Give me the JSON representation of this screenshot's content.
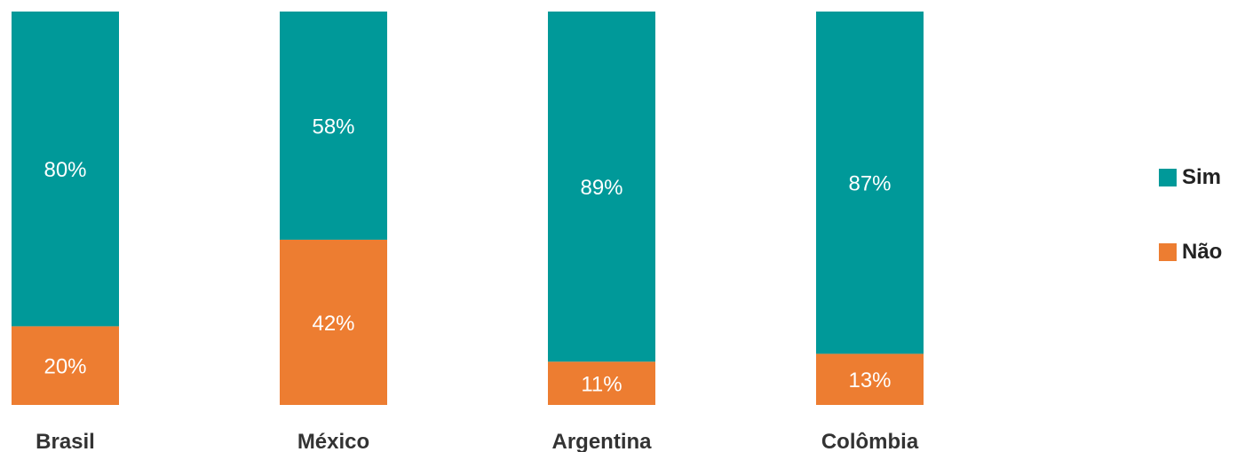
{
  "chart_data": {
    "type": "bar",
    "stacked": true,
    "categories": [
      "Brasil",
      "México",
      "Argentina",
      "Colômbia"
    ],
    "series": [
      {
        "name": "Sim",
        "values": [
          80,
          58,
          89,
          87
        ],
        "labels": [
          "80%",
          "58%",
          "89%",
          "87%"
        ],
        "color": "#009999"
      },
      {
        "name": "Não",
        "values": [
          20,
          42,
          11,
          13
        ],
        "labels": [
          "20%",
          "42%",
          "11%",
          "13%"
        ],
        "color": "#ED7D31"
      }
    ],
    "ylim": [
      0,
      100
    ],
    "unit": "%",
    "grid": false,
    "legend_position": "right"
  },
  "legend": {
    "items": [
      {
        "label": "Sim",
        "color": "#009999"
      },
      {
        "label": "Não",
        "color": "#ED7D31"
      }
    ]
  }
}
